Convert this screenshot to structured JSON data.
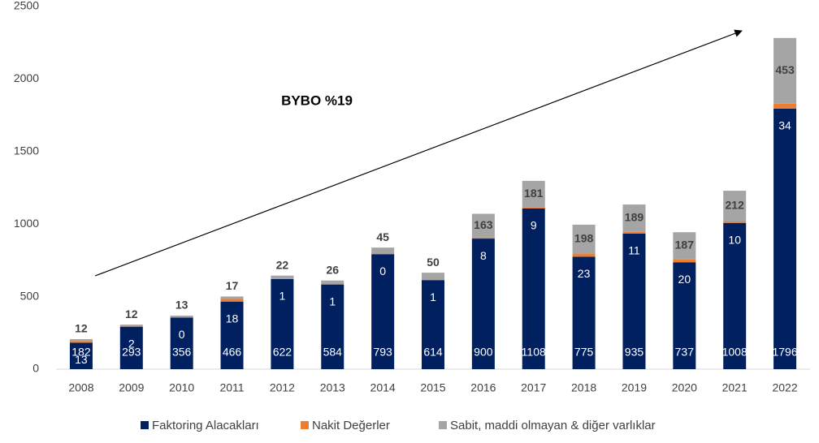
{
  "chart_data": {
    "type": "stacked_bar",
    "annotation": "BYBO %19",
    "categories": [
      "2008",
      "2009",
      "2010",
      "2011",
      "2012",
      "2013",
      "2014",
      "2015",
      "2016",
      "2017",
      "2018",
      "2019",
      "2020",
      "2021",
      "2022"
    ],
    "series": [
      {
        "name": "Faktoring Alacakları",
        "color": "#002060",
        "values": [
          182,
          293,
          356,
          466,
          622,
          584,
          793,
          614,
          900,
          1108,
          775,
          935,
          737,
          1008,
          1796
        ]
      },
      {
        "name": "Nakit Değerler",
        "color": "#ed7d31",
        "values": [
          13,
          2,
          0,
          18,
          1,
          1,
          0,
          1,
          8,
          9,
          23,
          11,
          20,
          10,
          34
        ]
      },
      {
        "name": "Sabit, maddi olmayan & diğer varlıklar",
        "color": "#a5a5a5",
        "values": [
          12,
          12,
          13,
          17,
          22,
          26,
          45,
          50,
          163,
          181,
          198,
          189,
          187,
          212,
          453
        ]
      }
    ],
    "ylim": [
      0,
      2500
    ],
    "yticks": [
      0,
      500,
      1000,
      1500,
      2000,
      2500
    ],
    "legend": "bottom"
  }
}
